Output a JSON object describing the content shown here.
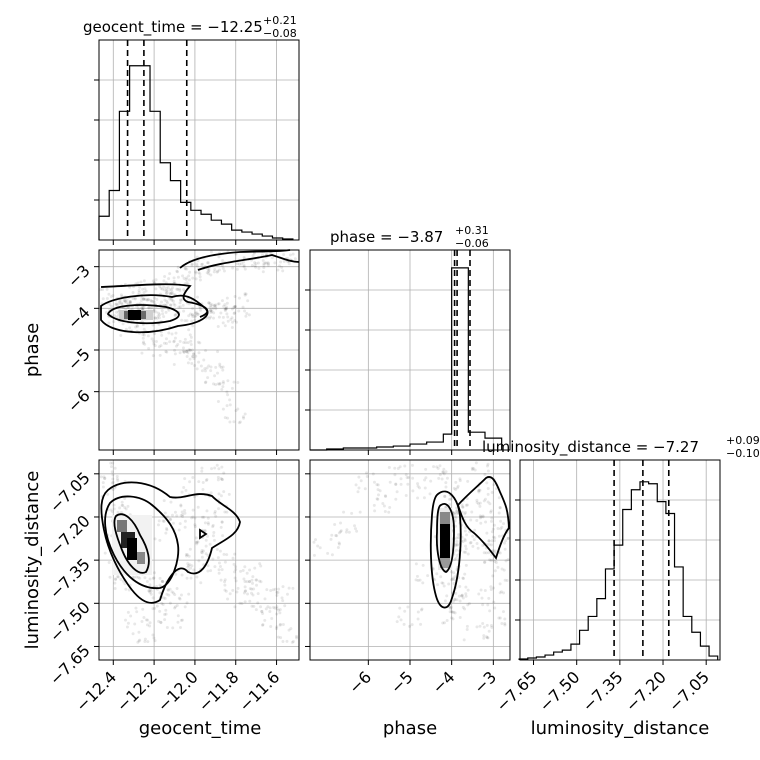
{
  "chart_data": {
    "type": "corner",
    "parameters": [
      "geocent_time",
      "phase",
      "luminosity_distance"
    ],
    "axis_labels": {
      "geocent_time": "geocent_time",
      "phase": "phase",
      "luminosity_distance": "luminosity_distance"
    },
    "ranges": {
      "geocent_time": [
        -12.47,
        -11.49
      ],
      "phase": [
        -7.4,
        -2.6
      ],
      "luminosity_distance": [
        -7.697,
        -7.002
      ]
    },
    "ticks": {
      "geocent_time": {
        "values": [
          -12.4,
          -12.2,
          -12.0,
          -11.8,
          -11.6
        ],
        "labels": [
          "−12.4",
          "−12.2",
          "−12.0",
          "−11.8",
          "−11.6"
        ]
      },
      "phase": {
        "values": [
          -6,
          -5,
          -4,
          -3
        ],
        "labels": [
          "−6",
          "−5",
          "−4",
          "−3"
        ]
      },
      "luminosity_distance": {
        "values": [
          -7.65,
          -7.5,
          -7.35,
          -7.2,
          -7.05
        ],
        "labels": [
          "−7.65",
          "−7.50",
          "−7.35",
          "−7.20",
          "−7.05"
        ]
      }
    },
    "titles": [
      {
        "param": "geocent_time",
        "text": "geocent_time = −12.25",
        "plus": "+0.21",
        "minus": "−0.08"
      },
      {
        "param": "phase",
        "text": "phase = −3.87",
        "plus": "+0.31",
        "minus": "−0.06"
      },
      {
        "param": "luminosity_distance",
        "text": "luminosity_distance = −7.27",
        "plus": "+0.09",
        "minus": "−0.10"
      }
    ],
    "quantiles": {
      "geocent_time": [
        -12.33,
        -12.25,
        -12.04
      ],
      "phase": [
        -3.93,
        -3.87,
        -3.56
      ],
      "luminosity_distance": [
        -7.37,
        -7.27,
        -7.18
      ]
    },
    "histograms": {
      "geocent_time": {
        "edges": [
          -12.47,
          -12.42,
          -12.37,
          -12.32,
          -12.27,
          -12.22,
          -12.17,
          -12.12,
          -12.07,
          -12.02,
          -11.97,
          -11.92,
          -11.87,
          -11.82,
          -11.77,
          -11.72,
          -11.67,
          -11.62,
          -11.57,
          -11.52
        ],
        "counts": [
          0.12,
          0.25,
          0.65,
          0.88,
          0.88,
          0.65,
          0.39,
          0.3,
          0.19,
          0.15,
          0.13,
          0.1,
          0.08,
          0.05,
          0.04,
          0.03,
          0.02,
          0.01,
          0.005
        ]
      },
      "phase": {
        "edges": [
          -7.4,
          -7.0,
          -6.6,
          -6.2,
          -5.8,
          -5.4,
          -5.0,
          -4.6,
          -4.2,
          -4.0,
          -3.6,
          -3.2,
          -2.8
        ],
        "counts": [
          0.0,
          0.005,
          0.01,
          0.01,
          0.015,
          0.02,
          0.03,
          0.04,
          0.08,
          0.92,
          0.09,
          0.06
        ]
      },
      "luminosity_distance": {
        "edges": [
          -7.7,
          -7.67,
          -7.64,
          -7.61,
          -7.58,
          -7.55,
          -7.52,
          -7.49,
          -7.46,
          -7.43,
          -7.4,
          -7.37,
          -7.34,
          -7.31,
          -7.28,
          -7.25,
          -7.22,
          -7.19,
          -7.16,
          -7.13,
          -7.1,
          -7.07,
          -7.04,
          -7.01
        ],
        "counts": [
          0.005,
          0.01,
          0.015,
          0.025,
          0.04,
          0.05,
          0.08,
          0.15,
          0.22,
          0.31,
          0.46,
          0.58,
          0.76,
          0.86,
          0.9,
          0.89,
          0.8,
          0.74,
          0.47,
          0.22,
          0.14,
          0.07,
          0.02
        ]
      }
    },
    "scatter_2d": {
      "phase_vs_geocent_time": [
        [
          -12.38,
          -3.9
        ],
        [
          -12.34,
          -3.95
        ],
        [
          -12.31,
          -3.87
        ],
        [
          -12.28,
          -3.92
        ],
        [
          -12.25,
          -4.02
        ],
        [
          -12.22,
          -3.85
        ],
        [
          -12.19,
          -3.98
        ],
        [
          -12.14,
          -4.1
        ],
        [
          -12.1,
          -3.8
        ],
        [
          -12.05,
          -4.05
        ],
        [
          -11.98,
          -3.95
        ],
        [
          -11.92,
          -4.15
        ],
        [
          -11.86,
          -4.2
        ],
        [
          -11.8,
          -4.1
        ],
        [
          -12.36,
          -4.2
        ],
        [
          -12.3,
          -4.4
        ],
        [
          -12.22,
          -4.6
        ],
        [
          -12.15,
          -4.7
        ],
        [
          -12.08,
          -4.9
        ],
        [
          -12.0,
          -5.0
        ],
        [
          -11.95,
          -5.3
        ],
        [
          -11.9,
          -5.6
        ],
        [
          -11.85,
          -6.0
        ],
        [
          -11.8,
          -6.5
        ],
        [
          -12.05,
          -5.2
        ],
        [
          -12.2,
          -4.9
        ],
        [
          -12.28,
          -4.3
        ],
        [
          -12.05,
          -3.2
        ],
        [
          -11.98,
          -3.0
        ],
        [
          -11.9,
          -2.9
        ],
        [
          -11.82,
          -2.85
        ],
        [
          -11.74,
          -2.8
        ],
        [
          -11.66,
          -2.75
        ],
        [
          -11.58,
          -2.72
        ],
        [
          -11.52,
          -2.7
        ],
        [
          -12.1,
          -3.4
        ],
        [
          -12.15,
          -3.55
        ],
        [
          -11.7,
          -2.9
        ],
        [
          -11.6,
          -2.85
        ],
        [
          -11.95,
          -3.1
        ],
        [
          -12.2,
          -3.7
        ],
        [
          -12.3,
          -3.6
        ],
        [
          -12.4,
          -3.8
        ],
        [
          -12.0,
          -4.3
        ],
        [
          -11.88,
          -3.95
        ],
        [
          -12.12,
          -3.7
        ],
        [
          -12.26,
          -4.1
        ],
        [
          -11.76,
          -3.9
        ]
      ],
      "luminosity_distance_vs_geocent_time": [
        [
          -12.4,
          -7.1
        ],
        [
          -12.35,
          -7.18
        ],
        [
          -12.32,
          -7.25
        ],
        [
          -12.3,
          -7.3
        ],
        [
          -12.27,
          -7.34
        ],
        [
          -12.25,
          -7.38
        ],
        [
          -12.22,
          -7.42
        ],
        [
          -12.18,
          -7.45
        ],
        [
          -12.15,
          -7.5
        ],
        [
          -12.12,
          -7.55
        ],
        [
          -12.08,
          -7.48
        ],
        [
          -12.03,
          -7.4
        ],
        [
          -11.98,
          -7.35
        ],
        [
          -11.94,
          -7.3
        ],
        [
          -11.9,
          -7.25
        ],
        [
          -11.86,
          -7.35
        ],
        [
          -11.82,
          -7.42
        ],
        [
          -11.78,
          -7.48
        ],
        [
          -11.74,
          -7.4
        ],
        [
          -11.7,
          -7.45
        ],
        [
          -11.66,
          -7.5
        ],
        [
          -11.62,
          -7.55
        ],
        [
          -11.58,
          -7.48
        ],
        [
          -11.54,
          -7.6
        ],
        [
          -12.42,
          -7.2
        ],
        [
          -12.38,
          -7.3
        ],
        [
          -12.36,
          -7.38
        ],
        [
          -12.34,
          -7.42
        ],
        [
          -12.28,
          -7.55
        ],
        [
          -12.24,
          -7.6
        ],
        [
          -12.2,
          -7.25
        ],
        [
          -12.1,
          -7.18
        ],
        [
          -12.0,
          -7.1
        ],
        [
          -11.92,
          -7.05
        ],
        [
          -12.06,
          -7.22
        ],
        [
          -11.96,
          -7.2
        ],
        [
          -11.88,
          -7.15
        ],
        [
          -12.44,
          -7.05
        ]
      ],
      "luminosity_distance_vs_phase": [
        [
          -3.9,
          -7.1
        ],
        [
          -3.85,
          -7.2
        ],
        [
          -3.95,
          -7.25
        ],
        [
          -3.92,
          -7.3
        ],
        [
          -3.88,
          -7.35
        ],
        [
          -3.97,
          -7.4
        ],
        [
          -3.9,
          -7.45
        ],
        [
          -3.86,
          -7.5
        ],
        [
          -3.94,
          -7.55
        ],
        [
          -3.91,
          -7.15
        ],
        [
          -3.89,
          -7.38
        ],
        [
          -3.96,
          -7.22
        ],
        [
          -3.2,
          -7.05
        ],
        [
          -3.1,
          -7.12
        ],
        [
          -3.0,
          -7.2
        ],
        [
          -2.9,
          -7.26
        ],
        [
          -2.8,
          -7.32
        ],
        [
          -2.72,
          -7.4
        ],
        [
          -2.68,
          -7.25
        ],
        [
          -2.95,
          -7.35
        ],
        [
          -3.3,
          -7.28
        ],
        [
          -3.5,
          -7.18
        ],
        [
          -3.7,
          -7.3
        ],
        [
          -4.1,
          -7.28
        ],
        [
          -4.4,
          -7.05
        ],
        [
          -4.8,
          -7.1
        ],
        [
          -5.2,
          -7.05
        ],
        [
          -5.6,
          -7.15
        ],
        [
          -6.0,
          -7.08
        ],
        [
          -6.5,
          -7.22
        ],
        [
          -7.0,
          -7.3
        ],
        [
          -4.6,
          -7.4
        ],
        [
          -5.0,
          -7.55
        ],
        [
          -3.4,
          -7.6
        ],
        [
          -3.05,
          -7.48
        ],
        [
          -2.85,
          -7.55
        ]
      ]
    },
    "density_peaks": {
      "phase_vs_geocent_time": [
        -12.25,
        -3.92
      ],
      "luminosity_distance_vs_geocent_time": [
        -12.33,
        -7.26
      ],
      "luminosity_distance_vs_phase": [
        -3.9,
        -7.27
      ]
    }
  }
}
